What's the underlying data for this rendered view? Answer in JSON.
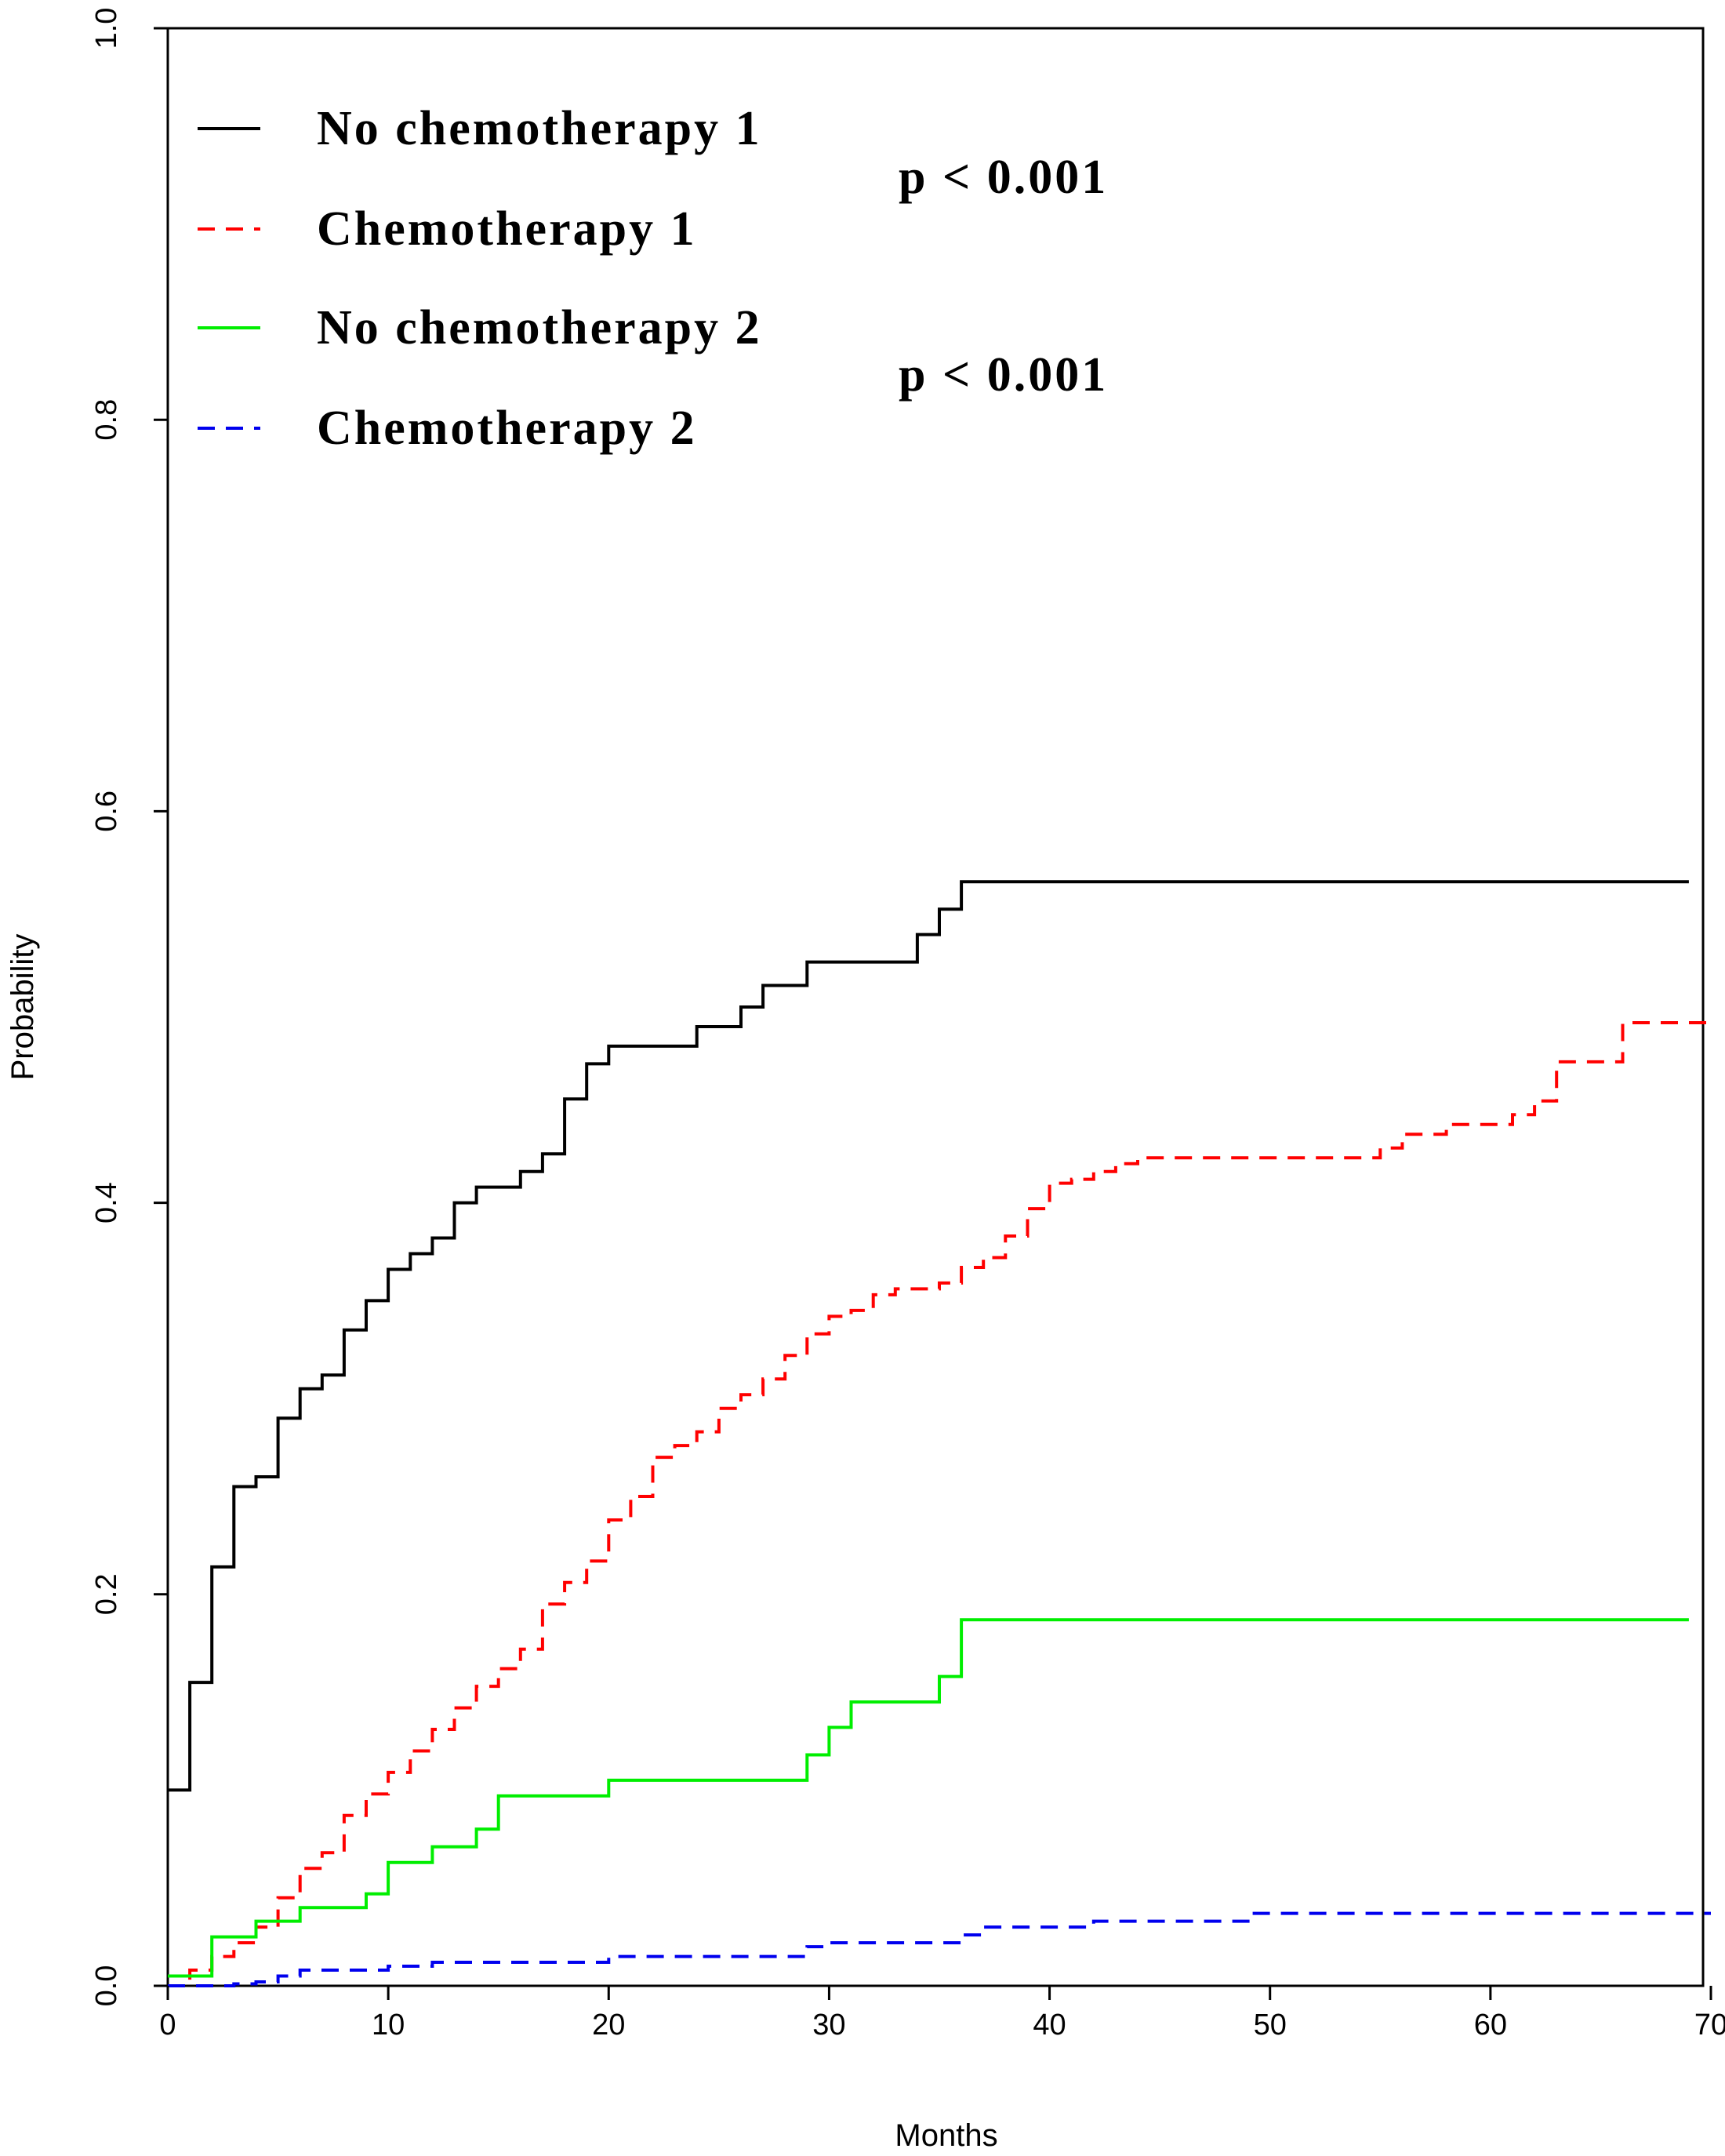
{
  "chart_data": {
    "type": "line",
    "step": true,
    "xlabel": "Months",
    "ylabel": "Probability",
    "xlim": [
      0,
      70
    ],
    "ylim": [
      0,
      1
    ],
    "xticks": [
      0,
      10,
      20,
      30,
      40,
      50,
      60,
      70
    ],
    "yticks": [
      "0.0",
      "0.2",
      "0.4",
      "0.6",
      "0.8",
      "1.0"
    ],
    "legend_position": "top-left",
    "annotations": [
      "p < 0.001",
      "p < 0.001"
    ],
    "series": [
      {
        "name": "No chemotherapy 1",
        "color": "#000000",
        "dash": "solid",
        "points": [
          [
            0,
            0.1
          ],
          [
            1,
            0.155
          ],
          [
            2,
            0.214
          ],
          [
            3,
            0.255
          ],
          [
            4,
            0.26
          ],
          [
            5,
            0.29
          ],
          [
            6,
            0.305
          ],
          [
            7,
            0.312
          ],
          [
            8,
            0.335
          ],
          [
            9,
            0.35
          ],
          [
            10,
            0.366
          ],
          [
            11,
            0.374
          ],
          [
            12,
            0.382
          ],
          [
            13,
            0.4
          ],
          [
            14,
            0.408
          ],
          [
            16,
            0.416
          ],
          [
            17,
            0.425
          ],
          [
            18,
            0.453
          ],
          [
            19,
            0.471
          ],
          [
            20,
            0.48
          ],
          [
            24,
            0.49
          ],
          [
            26,
            0.5
          ],
          [
            27,
            0.511
          ],
          [
            29,
            0.523
          ],
          [
            34,
            0.537
          ],
          [
            35,
            0.55
          ],
          [
            36,
            0.564
          ],
          [
            69,
            0.564
          ]
        ]
      },
      {
        "name": "Chemotherapy 1",
        "color": "#ff0000",
        "dash": "dashed",
        "points": [
          [
            0,
            0.0
          ],
          [
            1,
            0.008
          ],
          [
            2,
            0.015
          ],
          [
            3,
            0.022
          ],
          [
            4,
            0.03
          ],
          [
            5,
            0.045
          ],
          [
            6,
            0.06
          ],
          [
            7,
            0.068
          ],
          [
            8,
            0.087
          ],
          [
            9,
            0.098
          ],
          [
            10,
            0.109
          ],
          [
            11,
            0.12
          ],
          [
            12,
            0.131
          ],
          [
            13,
            0.142
          ],
          [
            14,
            0.153
          ],
          [
            15,
            0.162
          ],
          [
            16,
            0.172
          ],
          [
            17,
            0.195
          ],
          [
            18,
            0.206
          ],
          [
            19,
            0.217
          ],
          [
            20,
            0.238
          ],
          [
            21,
            0.25
          ],
          [
            22,
            0.27
          ],
          [
            23,
            0.276
          ],
          [
            24,
            0.283
          ],
          [
            25,
            0.295
          ],
          [
            26,
            0.302
          ],
          [
            27,
            0.31
          ],
          [
            28,
            0.322
          ],
          [
            29,
            0.333
          ],
          [
            30,
            0.342
          ],
          [
            31,
            0.345
          ],
          [
            32,
            0.353
          ],
          [
            33,
            0.356
          ],
          [
            35,
            0.359
          ],
          [
            36,
            0.367
          ],
          [
            37,
            0.372
          ],
          [
            38,
            0.383
          ],
          [
            39,
            0.397
          ],
          [
            40,
            0.41
          ],
          [
            41,
            0.412
          ],
          [
            42,
            0.416
          ],
          [
            43,
            0.42
          ],
          [
            44,
            0.423
          ],
          [
            55,
            0.428
          ],
          [
            56,
            0.435
          ],
          [
            58,
            0.44
          ],
          [
            61,
            0.445
          ],
          [
            62,
            0.452
          ],
          [
            63,
            0.472
          ],
          [
            66,
            0.492
          ],
          [
            70,
            0.492
          ]
        ]
      },
      {
        "name": "No chemotherapy 2",
        "color": "#00ee00",
        "dash": "solid",
        "points": [
          [
            0,
            0.005
          ],
          [
            2,
            0.025
          ],
          [
            4,
            0.033
          ],
          [
            6,
            0.04
          ],
          [
            9,
            0.047
          ],
          [
            10,
            0.063
          ],
          [
            12,
            0.071
          ],
          [
            14,
            0.08
          ],
          [
            15,
            0.097
          ],
          [
            20,
            0.105
          ],
          [
            29,
            0.118
          ],
          [
            30,
            0.132
          ],
          [
            31,
            0.145
          ],
          [
            35,
            0.158
          ],
          [
            36,
            0.187
          ],
          [
            69,
            0.187
          ]
        ]
      },
      {
        "name": "Chemotherapy 2",
        "color": "#0000ee",
        "dash": "dashed",
        "points": [
          [
            0,
            0.0
          ],
          [
            3,
            0.001
          ],
          [
            4,
            0.002
          ],
          [
            5,
            0.005
          ],
          [
            6,
            0.008
          ],
          [
            10,
            0.01
          ],
          [
            12,
            0.012
          ],
          [
            20,
            0.015
          ],
          [
            29,
            0.02
          ],
          [
            30,
            0.022
          ],
          [
            36,
            0.026
          ],
          [
            37,
            0.03
          ],
          [
            42,
            0.033
          ],
          [
            49,
            0.037
          ],
          [
            70,
            0.037
          ]
        ]
      }
    ]
  }
}
